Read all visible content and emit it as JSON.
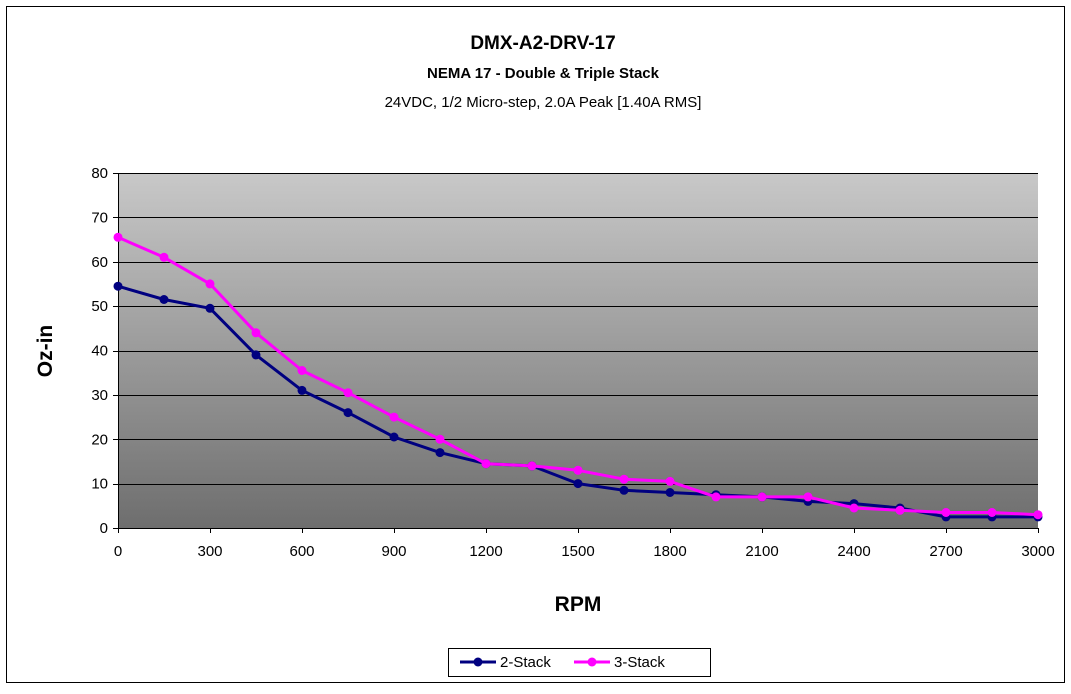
{
  "chart_data": {
    "type": "line",
    "title": "DMX-A2-DRV-17",
    "subtitle": "NEMA 17 - Double & Triple Stack",
    "subtitle2": "24VDC, 1/2 Micro-step, 2.0A Peak [1.40A RMS]",
    "xlabel": "RPM",
    "ylabel": "Oz-in",
    "xlim": [
      0,
      3000
    ],
    "ylim": [
      0,
      80
    ],
    "xticks": [
      0,
      300,
      600,
      900,
      1200,
      1500,
      1800,
      2100,
      2400,
      2700,
      3000
    ],
    "yticks": [
      0,
      10,
      20,
      30,
      40,
      50,
      60,
      70,
      80
    ],
    "grid": true,
    "legend_position": "bottom",
    "series": [
      {
        "name": "2-Stack",
        "color": "#000080",
        "x": [
          0,
          150,
          300,
          450,
          600,
          750,
          900,
          1050,
          1200,
          1350,
          1500,
          1650,
          1800,
          1950,
          2100,
          2250,
          2400,
          2550,
          2700,
          2850,
          3000
        ],
        "y": [
          54.5,
          51.5,
          49.5,
          39,
          31,
          26,
          20.5,
          17,
          14.5,
          14,
          10,
          8.5,
          8,
          7.5,
          7,
          6,
          5.5,
          4.5,
          2.5,
          2.5,
          2.5
        ]
      },
      {
        "name": "3-Stack",
        "color": "#FF00FF",
        "x": [
          0,
          150,
          300,
          450,
          600,
          750,
          900,
          1050,
          1200,
          1350,
          1500,
          1650,
          1800,
          1950,
          2100,
          2250,
          2400,
          2550,
          2700,
          2850,
          3000
        ],
        "y": [
          65.5,
          61,
          55,
          44,
          35.5,
          30.5,
          25,
          20,
          14.5,
          14,
          13,
          11,
          10.5,
          7,
          7,
          7,
          4.5,
          4,
          3.5,
          3.5,
          3
        ]
      }
    ]
  }
}
